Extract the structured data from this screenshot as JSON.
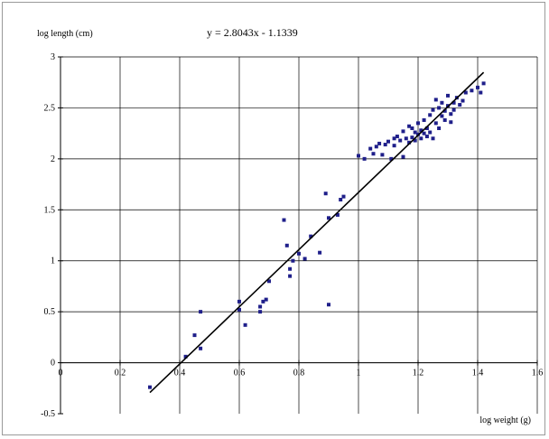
{
  "chart_data": {
    "type": "scatter",
    "title": "",
    "equation": "y = 2.8043x - 1.1339",
    "ylabel": "log length (cm)",
    "xlabel": "log weight (g)",
    "xlim": [
      0,
      1.6
    ],
    "ylim": [
      -0.5,
      3
    ],
    "x_ticks": [
      "0",
      "0.2",
      "0.4",
      "0.6",
      "0.8",
      "1",
      "1.2",
      "1.4",
      "1.6"
    ],
    "y_ticks": [
      "-0.5",
      "0",
      "0.5",
      "1",
      "1.5",
      "2",
      "2.5",
      "3"
    ],
    "grid": true,
    "legend": "none",
    "colors": {
      "points": "#1f1f8a",
      "trendline": "#000000",
      "grid": "#000000"
    },
    "trendline": {
      "slope": 2.8043,
      "intercept": -1.1339,
      "x_range": [
        0.3,
        1.42
      ]
    },
    "series": [
      {
        "points": [
          [
            0.3,
            -0.24
          ],
          [
            0.42,
            0.06
          ],
          [
            0.45,
            0.27
          ],
          [
            0.47,
            0.14
          ],
          [
            0.47,
            0.5
          ],
          [
            0.6,
            0.6
          ],
          [
            0.6,
            0.52
          ],
          [
            0.62,
            0.37
          ],
          [
            0.67,
            0.5
          ],
          [
            0.67,
            0.55
          ],
          [
            0.68,
            0.6
          ],
          [
            0.69,
            0.62
          ],
          [
            0.7,
            0.8
          ],
          [
            0.75,
            1.4
          ],
          [
            0.76,
            1.15
          ],
          [
            0.77,
            0.85
          ],
          [
            0.77,
            0.92
          ],
          [
            0.78,
            1.0
          ],
          [
            0.8,
            1.07
          ],
          [
            0.82,
            1.02
          ],
          [
            0.84,
            1.24
          ],
          [
            0.87,
            1.08
          ],
          [
            0.89,
            1.66
          ],
          [
            0.9,
            1.42
          ],
          [
            0.9,
            0.57
          ],
          [
            0.93,
            1.45
          ],
          [
            0.94,
            1.6
          ],
          [
            0.95,
            1.63
          ],
          [
            1.0,
            2.03
          ],
          [
            1.02,
            2.0
          ],
          [
            1.04,
            2.1
          ],
          [
            1.05,
            2.05
          ],
          [
            1.06,
            2.12
          ],
          [
            1.07,
            2.15
          ],
          [
            1.08,
            2.04
          ],
          [
            1.09,
            2.14
          ],
          [
            1.1,
            2.17
          ],
          [
            1.11,
            2.0
          ],
          [
            1.12,
            2.2
          ],
          [
            1.12,
            2.13
          ],
          [
            1.13,
            2.22
          ],
          [
            1.14,
            2.18
          ],
          [
            1.15,
            2.27
          ],
          [
            1.15,
            2.02
          ],
          [
            1.16,
            2.2
          ],
          [
            1.17,
            2.16
          ],
          [
            1.17,
            2.32
          ],
          [
            1.18,
            2.21
          ],
          [
            1.18,
            2.3
          ],
          [
            1.19,
            2.18
          ],
          [
            1.19,
            2.26
          ],
          [
            1.2,
            2.24
          ],
          [
            1.2,
            2.35
          ],
          [
            1.21,
            2.2
          ],
          [
            1.21,
            2.28
          ],
          [
            1.22,
            2.25
          ],
          [
            1.22,
            2.38
          ],
          [
            1.23,
            2.22
          ],
          [
            1.23,
            2.3
          ],
          [
            1.24,
            2.43
          ],
          [
            1.24,
            2.26
          ],
          [
            1.25,
            2.2
          ],
          [
            1.25,
            2.48
          ],
          [
            1.26,
            2.35
          ],
          [
            1.26,
            2.58
          ],
          [
            1.27,
            2.3
          ],
          [
            1.27,
            2.5
          ],
          [
            1.28,
            2.42
          ],
          [
            1.28,
            2.55
          ],
          [
            1.29,
            2.38
          ],
          [
            1.29,
            2.47
          ],
          [
            1.3,
            2.52
          ],
          [
            1.3,
            2.62
          ],
          [
            1.31,
            2.44
          ],
          [
            1.31,
            2.36
          ],
          [
            1.32,
            2.55
          ],
          [
            1.32,
            2.48
          ],
          [
            1.33,
            2.6
          ],
          [
            1.34,
            2.53
          ],
          [
            1.35,
            2.57
          ],
          [
            1.36,
            2.65
          ],
          [
            1.38,
            2.67
          ],
          [
            1.4,
            2.7
          ],
          [
            1.41,
            2.65
          ],
          [
            1.42,
            2.74
          ]
        ]
      }
    ]
  }
}
